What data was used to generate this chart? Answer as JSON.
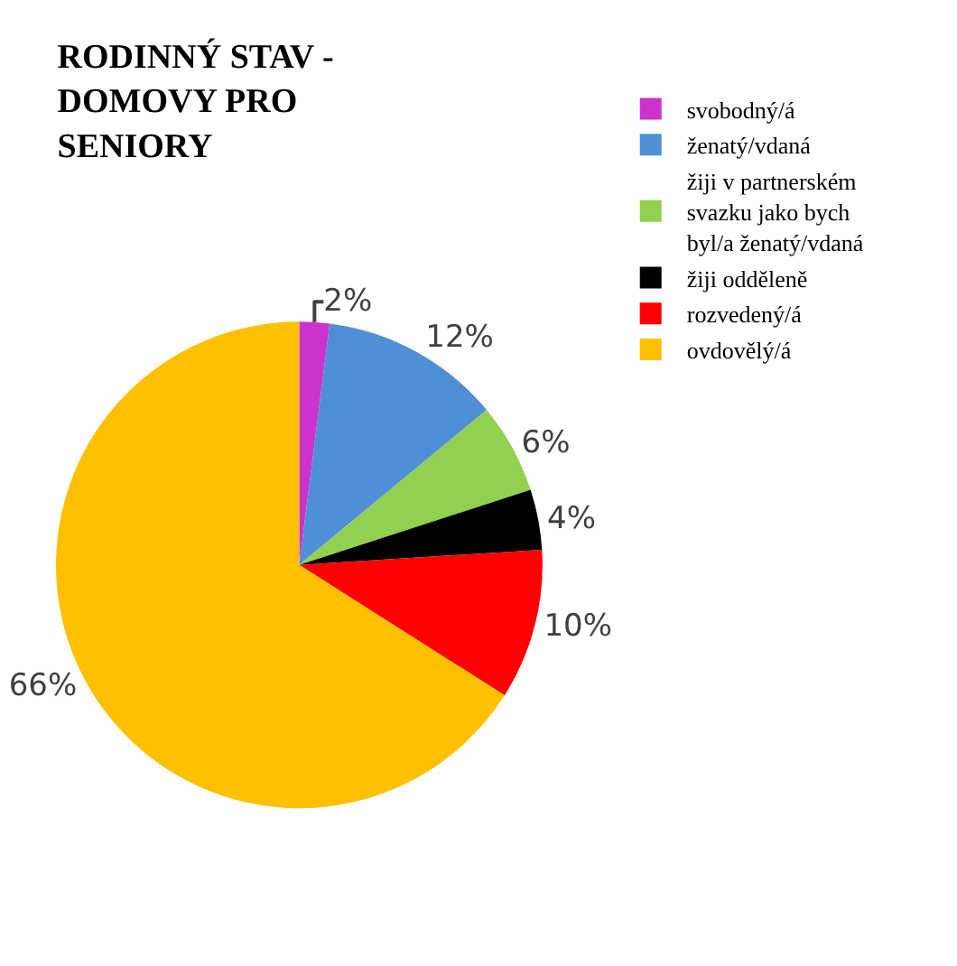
{
  "chart_data": {
    "type": "pie",
    "title": "RODINNÝ STAV - DOMOVY PRO SENIORY",
    "categories": [
      "svobodný/á",
      "ženatý/vdaná",
      "žiji v partnerském svazku jako bych byl/a ženatý/vdaná",
      "žiji odděleně",
      "rozvedený/á",
      "ovdovělý/á"
    ],
    "values": [
      2,
      12,
      6,
      4,
      10,
      66
    ],
    "colors": [
      "#cc33cc",
      "#4f8fd6",
      "#92d050",
      "#000000",
      "#ff0000",
      "#ffc000"
    ],
    "value_labels": [
      "2%",
      "12%",
      "6%",
      "4%",
      "10%",
      "66%"
    ],
    "legend": "right"
  }
}
